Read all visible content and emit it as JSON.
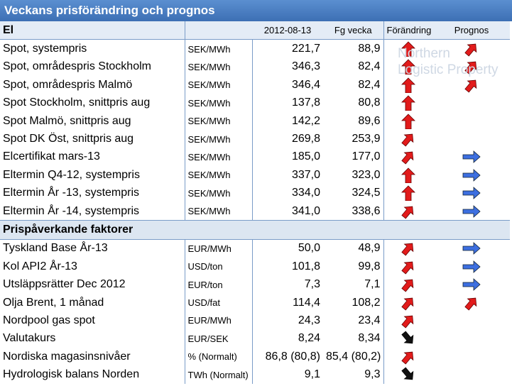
{
  "title": "Veckans prisförändring och prognos",
  "watermark": [
    "Northern",
    "Logistic Property"
  ],
  "sections": [
    {
      "heading": "El",
      "columns": [
        "2012-08-13",
        "Fg vecka",
        "Förändring",
        "Prognos"
      ],
      "rows": [
        [
          "Spot, systempris",
          "SEK/MWh",
          "221,7",
          "88,9"
        ],
        [
          "Spot, områdespris Stockholm",
          "SEK/MWh",
          "346,3",
          "82,4"
        ],
        [
          "Spot, områdespris Malmö",
          "SEK/MWh",
          "346,4",
          "82,4"
        ],
        [
          "Spot Stockholm, snittpris aug",
          "SEK/MWh",
          "137,8",
          "80,8"
        ],
        [
          "Spot Malmö, snittpris aug",
          "SEK/MWh",
          "142,2",
          "89,6"
        ],
        [
          "Spot DK Öst, snittpris aug",
          "SEK/MWh",
          "269,8",
          "253,9"
        ],
        [
          "Elcertifikat mars-13",
          "SEK/MWh",
          "185,0",
          "177,0"
        ],
        [
          "Eltermin Q4-12, systempris",
          "SEK/MWh",
          "337,0",
          "323,0"
        ],
        [
          "Eltermin År -13, systempris",
          "SEK/MWh",
          "334,0",
          "324,5"
        ],
        [
          "Eltermin År -14, systempris",
          "SEK/MWh",
          "341,0",
          "338,6"
        ]
      ]
    },
    {
      "heading": "Prispåverkande faktorer",
      "rows": [
        [
          "Tyskland Base År-13",
          "EUR/MWh",
          "50,0",
          "48,9"
        ],
        [
          "Kol API2 År-13",
          "USD/ton",
          "101,8",
          "99,8"
        ],
        [
          "Utsläppsrätter Dec 2012",
          "EUR/ton",
          "7,3",
          "7,1"
        ],
        [
          "Olja Brent, 1 månad",
          "USD/fat",
          "114,4",
          "108,2"
        ],
        [
          "Nordpool gas spot",
          "EUR/MWh",
          "24,3",
          "23,4"
        ],
        [
          "Valutakurs",
          "EUR/SEK",
          "8,24",
          "8,34"
        ],
        [
          "Nordiska magasinsnivåer",
          "% (Normalt)",
          "86,8 (80,8)",
          "85,4 (80,2)"
        ],
        [
          "Hydrologisk balans Norden",
          "TWh (Normalt)",
          "9,1",
          "9,3"
        ]
      ]
    }
  ]
}
